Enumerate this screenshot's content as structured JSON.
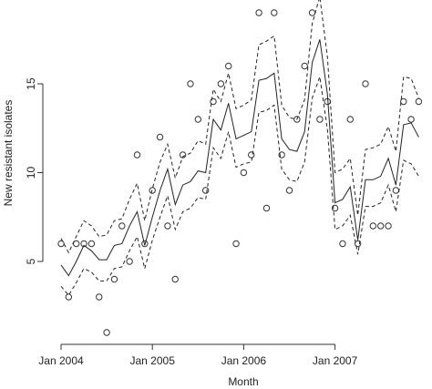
{
  "chart_data": {
    "type": "line",
    "title": "",
    "xlabel": "Month",
    "ylabel": "New resistant isolates",
    "x_tick_labels": [
      "Jan 2004",
      "Jan 2005",
      "Jan 2006",
      "Jan 2007"
    ],
    "x_tick_months": [
      0,
      12,
      24,
      36
    ],
    "y_ticks": [
      5,
      10,
      15
    ],
    "xlim": [
      -1,
      48
    ],
    "ylim": [
      0,
      20
    ],
    "grid": false,
    "legend": "none",
    "colors": {
      "line": "#222222",
      "points": "#333333",
      "axis": "#333333"
    },
    "series": [
      {
        "style": "points",
        "x": [
          0,
          1,
          2,
          3,
          4,
          5,
          6,
          7,
          8,
          9,
          10,
          11,
          12,
          13,
          14,
          15,
          16,
          17,
          18,
          19,
          20,
          21,
          22,
          23,
          24,
          25,
          26,
          27,
          28,
          29,
          30,
          31,
          32,
          33,
          34,
          35,
          36,
          37,
          38,
          39,
          40,
          41,
          42,
          43,
          44,
          45,
          46,
          47
        ],
        "values": [
          6,
          3,
          6,
          6,
          6,
          3,
          1,
          4,
          7,
          5,
          11,
          6,
          9,
          12,
          7,
          4,
          11,
          15,
          13,
          9,
          14,
          15,
          16,
          6,
          10,
          11,
          19,
          8,
          19,
          11,
          9,
          13,
          16,
          19,
          13,
          14,
          8,
          6,
          13,
          6,
          15,
          7,
          7,
          7,
          9,
          14,
          13,
          14
        ]
      },
      {
        "style": "solid",
        "x": [
          0,
          1,
          2,
          3,
          4,
          5,
          6,
          7,
          8,
          9,
          10,
          11,
          12,
          13,
          14,
          15,
          16,
          17,
          18,
          19,
          20,
          21,
          22,
          23,
          24,
          25,
          26,
          27,
          28,
          29,
          30,
          31,
          32,
          33,
          34,
          35,
          36,
          37,
          38,
          39,
          40,
          41,
          42,
          43,
          44,
          45,
          46,
          47
        ],
        "values": [
          4.8,
          4.2,
          5.0,
          5.9,
          5.6,
          5.1,
          5.1,
          5.9,
          6.0,
          7.0,
          7.8,
          5.9,
          7.5,
          9.0,
          10.2,
          8.2,
          9.3,
          9.5,
          10.1,
          10.0,
          13.0,
          12.4,
          13.9,
          11.9,
          12.1,
          12.3,
          15.2,
          15.3,
          15.6,
          11.9,
          11.3,
          11.2,
          12.3,
          16.2,
          17.5,
          14.4,
          8.3,
          8.5,
          9.2,
          6.2,
          9.6,
          9.6,
          9.8,
          10.8,
          9.3,
          12.7,
          12.8,
          12.0
        ]
      },
      {
        "style": "dashed",
        "x": [
          0,
          1,
          2,
          3,
          4,
          5,
          6,
          7,
          8,
          9,
          10,
          11,
          12,
          13,
          14,
          15,
          16,
          17,
          18,
          19,
          20,
          21,
          22,
          23,
          24,
          25,
          26,
          27,
          28,
          29,
          30,
          31,
          32,
          33,
          34,
          35,
          36,
          37,
          38,
          39,
          40,
          41,
          42,
          43,
          44,
          45,
          46,
          47
        ],
        "values": [
          6.3,
          5.5,
          6.4,
          7.3,
          7.0,
          6.4,
          6.5,
          7.3,
          7.4,
          8.5,
          9.4,
          7.3,
          9.1,
          10.6,
          11.6,
          9.7,
          10.9,
          11.1,
          11.8,
          11.6,
          14.7,
          14.0,
          15.6,
          13.6,
          13.8,
          14.1,
          17.2,
          17.4,
          17.7,
          13.8,
          13.1,
          13.0,
          14.1,
          18.4,
          19.9,
          16.5,
          10.0,
          10.2,
          10.8,
          7.6,
          11.3,
          11.4,
          11.6,
          12.6,
          11.2,
          15.4,
          15.3,
          14.2
        ]
      },
      {
        "style": "dashed",
        "x": [
          0,
          1,
          2,
          3,
          4,
          5,
          6,
          7,
          8,
          9,
          10,
          11,
          12,
          13,
          14,
          15,
          16,
          17,
          18,
          19,
          20,
          21,
          22,
          23,
          24,
          25,
          26,
          27,
          28,
          29,
          30,
          31,
          32,
          33,
          34,
          35,
          36,
          37,
          38,
          39,
          40,
          41,
          42,
          43,
          44,
          45,
          46,
          47
        ],
        "values": [
          3.6,
          3.1,
          3.8,
          4.6,
          4.4,
          3.9,
          3.9,
          4.6,
          4.7,
          5.6,
          6.4,
          4.6,
          6.2,
          7.5,
          8.7,
          6.8,
          7.8,
          8.0,
          8.6,
          8.5,
          11.4,
          10.8,
          12.3,
          10.3,
          10.5,
          10.6,
          13.4,
          13.5,
          13.8,
          10.2,
          9.6,
          9.5,
          10.6,
          14.2,
          15.4,
          12.4,
          6.8,
          7.0,
          7.6,
          5.4,
          8.1,
          8.1,
          8.3,
          9.3,
          7.8,
          10.7,
          10.5,
          9.8
        ]
      }
    ]
  }
}
